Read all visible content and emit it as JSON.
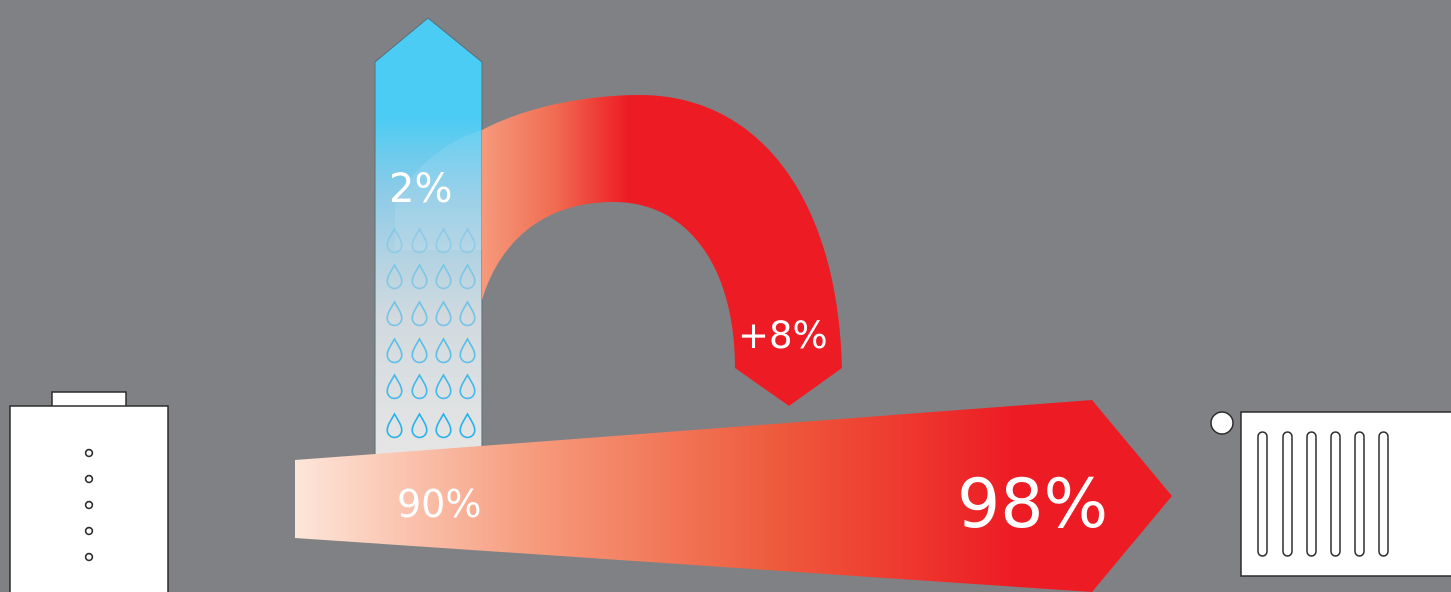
{
  "labels": {
    "vapor_pct": "2%",
    "recovered_pct": "+8%",
    "input_pct": "90%",
    "output_pct": "98%"
  },
  "colors": {
    "background": "#808184",
    "hot_red": "#ED1C24",
    "warm_start": "#FDE6DA",
    "vapor_blue": "#4ACCF4",
    "device_fill": "#FFFFFF",
    "device_stroke": "#2B2B2B"
  },
  "icons": {
    "boiler": "boiler-icon",
    "radiator": "radiator-icon",
    "water_drop": "water-drop-icon"
  }
}
